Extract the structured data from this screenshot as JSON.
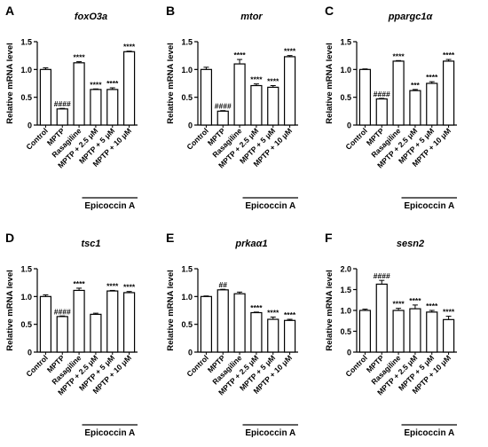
{
  "figure": {
    "background": "#ffffff",
    "bar_fill": "#ffffff",
    "stroke": "#000000",
    "group_label": "Epicoccin A"
  },
  "chart_data": [
    {
      "panel": "A",
      "title": "foxO3a",
      "type": "bar",
      "ylabel": "Relative mRNA level",
      "ylim": [
        0,
        1.5
      ],
      "yticks": [
        0,
        0.5,
        1.0,
        1.5
      ],
      "categories": [
        "Control",
        "MPTP",
        "Rasagiline",
        "MPTP + 2.5 μM",
        "MPTP + 5 μM",
        "MPTP + 10 μM"
      ],
      "values": [
        1.0,
        0.29,
        1.12,
        0.64,
        0.64,
        1.32
      ],
      "errors": [
        0.03,
        0.01,
        0.02,
        0.01,
        0.03,
        0.01
      ],
      "annotations": [
        "",
        "####",
        "****",
        "****",
        "****",
        "****"
      ]
    },
    {
      "panel": "B",
      "title": "mtor",
      "type": "bar",
      "ylabel": "Relative mRNA level",
      "ylim": [
        0,
        1.5
      ],
      "yticks": [
        0,
        0.5,
        1.0,
        1.5
      ],
      "categories": [
        "Control",
        "MPTP",
        "Rasagiline",
        "MPTP + 2.5 μM",
        "MPTP + 5 μM",
        "MPTP + 10 μM"
      ],
      "values": [
        1.0,
        0.25,
        1.1,
        0.71,
        0.68,
        1.23
      ],
      "errors": [
        0.04,
        0.01,
        0.08,
        0.03,
        0.03,
        0.02
      ],
      "annotations": [
        "",
        "####",
        "****",
        "****",
        "****",
        "****"
      ]
    },
    {
      "panel": "C",
      "title": "ppargc1α",
      "type": "bar",
      "ylabel": "Relative mRNA level",
      "ylim": [
        0,
        1.5
      ],
      "yticks": [
        0,
        0.5,
        1.0,
        1.5
      ],
      "categories": [
        "Control",
        "MPTP",
        "Rasagiline",
        "MPTP + 2.5 μM",
        "MPTP + 5 μM",
        "MPTP + 10 μM"
      ],
      "values": [
        1.0,
        0.47,
        1.15,
        0.62,
        0.75,
        1.15
      ],
      "errors": [
        0.01,
        0.01,
        0.01,
        0.02,
        0.03,
        0.03
      ],
      "annotations": [
        "",
        "####",
        "****",
        "***",
        "****",
        "****"
      ]
    },
    {
      "panel": "D",
      "title": "tsc1",
      "type": "bar",
      "ylabel": "Relative mRNA level",
      "ylim": [
        0,
        1.5
      ],
      "yticks": [
        0,
        0.5,
        1.0,
        1.5
      ],
      "categories": [
        "Control",
        "MPTP",
        "Rasagiline",
        "MPTP + 2.5 μM",
        "MPTP + 5 μM",
        "MPTP + 10 μM"
      ],
      "values": [
        1.0,
        0.64,
        1.11,
        0.68,
        1.1,
        1.07
      ],
      "errors": [
        0.03,
        0.01,
        0.04,
        0.02,
        0.01,
        0.02
      ],
      "annotations": [
        "",
        "####",
        "****",
        "",
        "****",
        "****"
      ]
    },
    {
      "panel": "E",
      "title": "prkaα1",
      "type": "bar",
      "ylabel": "Relative mRNA level",
      "ylim": [
        0,
        1.5
      ],
      "yticks": [
        0,
        0.5,
        1.0,
        1.5
      ],
      "categories": [
        "Control",
        "MPTP",
        "Rasagiline",
        "MPTP + 2.5 μM",
        "MPTP + 5 μM",
        "MPTP + 10 μM"
      ],
      "values": [
        1.0,
        1.12,
        1.05,
        0.71,
        0.59,
        0.57
      ],
      "errors": [
        0.01,
        0.01,
        0.03,
        0.01,
        0.04,
        0.02
      ],
      "annotations": [
        "",
        "##",
        "",
        "****",
        "****",
        "****"
      ]
    },
    {
      "panel": "F",
      "title": "sesn2",
      "type": "bar",
      "ylabel": "Relative mRNA level",
      "ylim": [
        0,
        2.0
      ],
      "yticks": [
        0,
        0.5,
        1.0,
        1.5,
        2.0
      ],
      "categories": [
        "Control",
        "MPTP",
        "Rasagiline",
        "MPTP + 2.5 μM",
        "MPTP + 5 μM",
        "MPTP + 10 μM"
      ],
      "values": [
        1.0,
        1.63,
        1.0,
        1.04,
        0.96,
        0.78
      ],
      "errors": [
        0.03,
        0.09,
        0.05,
        0.09,
        0.04,
        0.08
      ],
      "annotations": [
        "",
        "####",
        "****",
        "****",
        "****",
        "****"
      ]
    }
  ]
}
